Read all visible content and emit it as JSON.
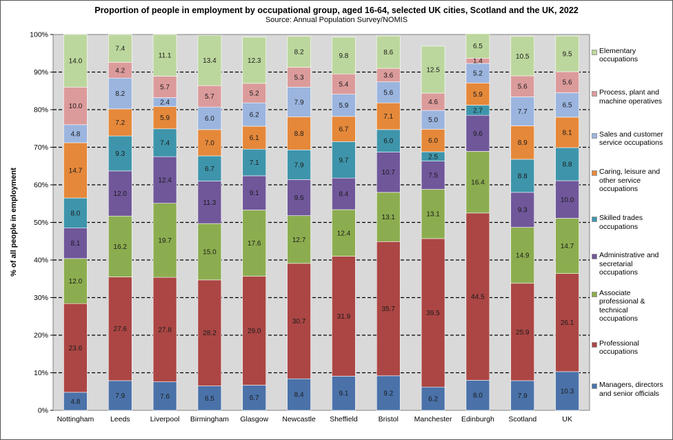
{
  "chart_data": {
    "type": "bar",
    "stacked": true,
    "title": "Proportion of people in employment by occupational group, aged 16-64, selected UK cities, Scotland and the UK, 2022",
    "subtitle": "Source: Annual Population Survey/NOMIS",
    "ylabel": "% of all people in employment",
    "xlabel": "",
    "ylim": [
      0,
      100
    ],
    "yticks": [
      "0%",
      "10%",
      "20%",
      "30%",
      "40%",
      "50%",
      "60%",
      "70%",
      "80%",
      "90%",
      "100%"
    ],
    "grid": "dashed horizontal",
    "legend_position": "right",
    "categories": [
      "Nottingham",
      "Leeds",
      "Liverpool",
      "Birmingham",
      "Glasgow",
      "Newcastle",
      "Sheffield",
      "Bristol",
      "Manchester",
      "Edinburgh",
      "Scotland",
      "UK"
    ],
    "series": [
      {
        "name": "Managers, directors and senior officials",
        "color": "#4a72a9",
        "values": [
          4.8,
          7.9,
          7.6,
          6.5,
          6.7,
          8.4,
          9.1,
          9.2,
          6.2,
          8.0,
          7.9,
          10.3
        ]
      },
      {
        "name": "Professional occupations",
        "color": "#ab4644",
        "values": [
          23.6,
          27.6,
          27.8,
          28.2,
          29.0,
          30.7,
          31.9,
          35.7,
          39.5,
          44.5,
          25.9,
          26.1
        ]
      },
      {
        "name": "Associate professional & technical occupations",
        "color": "#8cad4f",
        "values": [
          12.0,
          16.2,
          19.7,
          15.0,
          17.6,
          12.7,
          12.4,
          13.1,
          13.1,
          16.4,
          14.9,
          14.7
        ]
      },
      {
        "name": "Administrative and secretarial occupations",
        "color": "#70579a",
        "values": [
          8.1,
          12.0,
          12.4,
          11.3,
          9.1,
          9.6,
          8.4,
          10.7,
          7.5,
          9.6,
          9.3,
          10.0
        ]
      },
      {
        "name": "Skilled trades occupations",
        "color": "#3e95ab",
        "values": [
          8.0,
          9.3,
          7.4,
          6.7,
          7.1,
          7.9,
          9.7,
          6.0,
          2.5,
          2.7,
          8.8,
          8.8
        ]
      },
      {
        "name": "Caring, leisure and other service occupations",
        "color": "#e5883a",
        "values": [
          14.7,
          7.2,
          5.9,
          7.0,
          6.1,
          8.8,
          6.7,
          7.1,
          6.0,
          5.9,
          8.9,
          8.1
        ]
      },
      {
        "name": "Sales and customer service occupations",
        "color": "#9bb5df",
        "values": [
          4.8,
          8.2,
          2.4,
          6.0,
          6.2,
          7.9,
          5.9,
          5.6,
          5.0,
          5.2,
          7.7,
          6.5
        ]
      },
      {
        "name": "Process, plant and machine operatives",
        "color": "#dc9b9b",
        "values": [
          10.0,
          4.2,
          5.7,
          5.7,
          5.2,
          5.3,
          5.4,
          3.6,
          4.6,
          1.4,
          5.6,
          5.6
        ]
      },
      {
        "name": "Elementary occupations",
        "color": "#bcd79d",
        "values": [
          14.0,
          7.4,
          11.1,
          13.4,
          12.3,
          8.2,
          9.8,
          8.6,
          12.5,
          6.5,
          10.5,
          9.5
        ]
      }
    ],
    "legend": [
      {
        "label": "Elementary occupations",
        "series": 8,
        "lines": [
          "Elementary",
          "occupations"
        ]
      },
      {
        "label": "Process, plant and machine operatives",
        "series": 7,
        "lines": [
          "Process, plant and",
          "machine operatives"
        ]
      },
      {
        "label": "Sales and customer service occupations",
        "series": 6,
        "lines": [
          "Sales and customer",
          "service occupations"
        ]
      },
      {
        "label": "Caring, leisure and other service occupations",
        "series": 5,
        "lines": [
          "Caring, leisure and",
          "other service",
          "occupations"
        ]
      },
      {
        "label": "Skilled trades occupations",
        "series": 4,
        "lines": [
          "Skilled trades",
          "occupations"
        ]
      },
      {
        "label": "Administrative and secretarial occupations",
        "series": 3,
        "lines": [
          "Administrative and",
          "secretarial",
          "occupations"
        ]
      },
      {
        "label": "Associate professional & technical occupations",
        "series": 2,
        "lines": [
          "Associate",
          "professional &",
          "technical",
          "occupations"
        ]
      },
      {
        "label": "Professional occupations",
        "series": 1,
        "lines": [
          "Professional",
          "occupations"
        ]
      },
      {
        "label": "Managers, directors and senior officials",
        "series": 0,
        "lines": [
          "Managers, directors",
          "and senior officials"
        ]
      }
    ]
  }
}
